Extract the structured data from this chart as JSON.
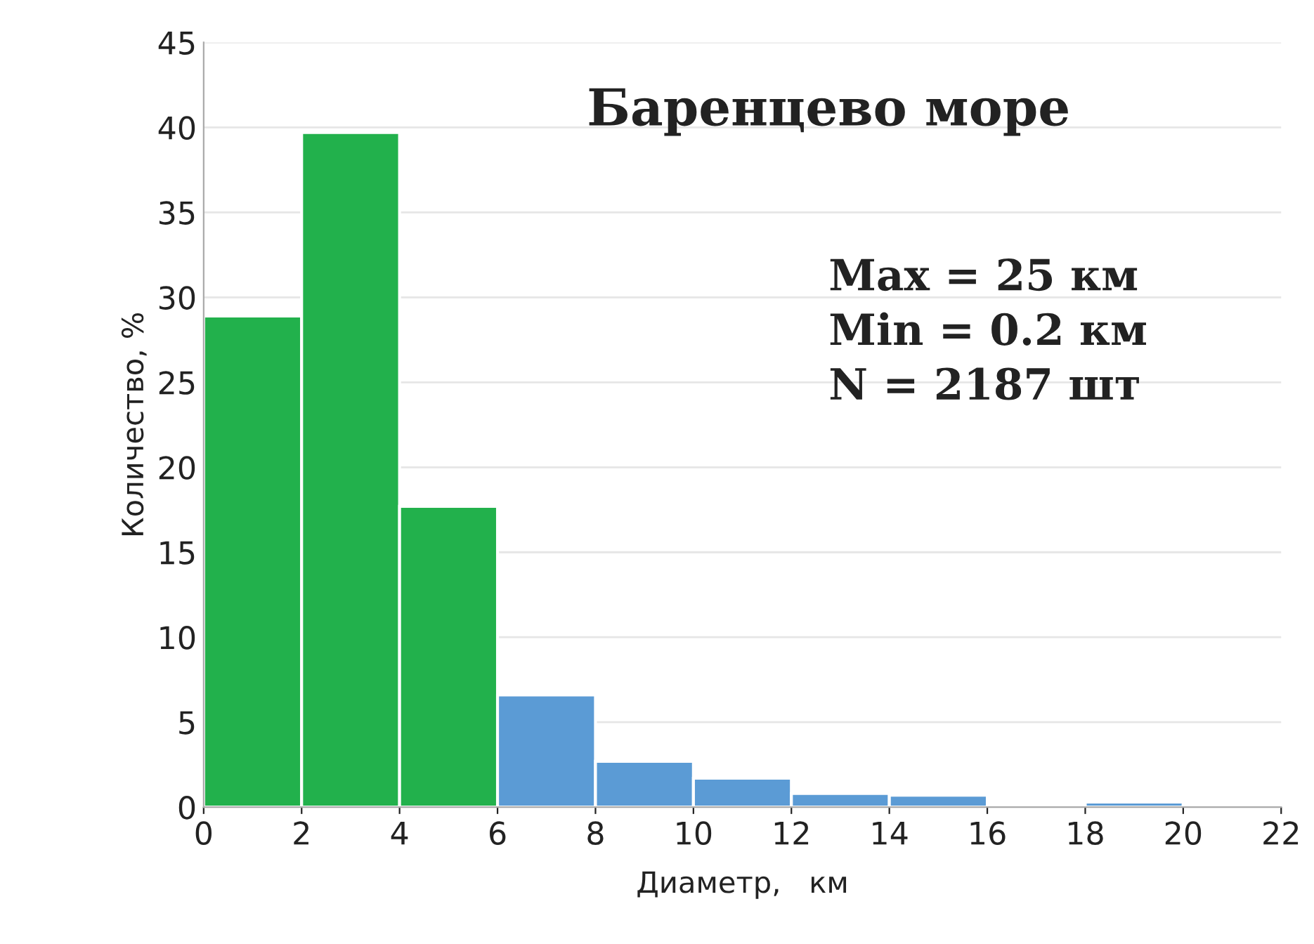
{
  "chart_data": {
    "type": "histogram",
    "title": "Баренцево море",
    "xlabel": "Диаметр,   км",
    "ylabel": "Количество, %",
    "bins": [
      0,
      2,
      4,
      6,
      8,
      10,
      12,
      14,
      16,
      18,
      20,
      22
    ],
    "values": [
      28.9,
      39.7,
      17.7,
      6.6,
      2.7,
      1.7,
      0.8,
      0.7,
      0.1,
      0.3,
      0.1
    ],
    "colors": [
      "#22b14c",
      "#22b14c",
      "#22b14c",
      "#5b9bd5",
      "#5b9bd5",
      "#5b9bd5",
      "#5b9bd5",
      "#5b9bd5",
      "#5b9bd5",
      "#5b9bd5",
      "#5b9bd5"
    ],
    "xlim": [
      0,
      22
    ],
    "xticks": [
      0,
      2,
      4,
      6,
      8,
      10,
      12,
      14,
      16,
      18,
      20,
      22
    ],
    "ylim": [
      0,
      45
    ],
    "yticks": [
      0,
      5,
      10,
      15,
      20,
      25,
      30,
      35,
      40,
      45
    ],
    "grid": "y",
    "annotations": [
      "Max = 25 км\nMin = 0.2 км\nN = 2187 шт"
    ]
  }
}
